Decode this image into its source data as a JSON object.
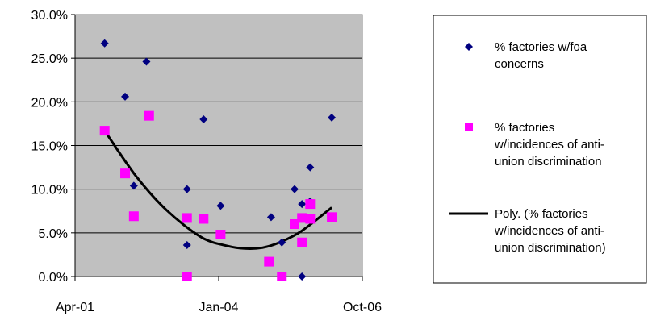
{
  "chart_data": {
    "type": "scatter",
    "title": "",
    "xlabel": "",
    "ylabel": "",
    "x_ticks": [
      "Apr-01",
      "Jan-04",
      "Oct-06"
    ],
    "y_ticks": [
      "0.0%",
      "5.0%",
      "10.0%",
      "15.0%",
      "20.0%",
      "25.0%",
      "30.0%"
    ],
    "xlim": [
      "2001-04-01",
      "2006-10-01"
    ],
    "ylim": [
      0,
      30
    ],
    "y_unit": "%",
    "grid": "horizontal",
    "plot_background": "#c0c0c0",
    "legend_position": "right",
    "series": [
      {
        "name": "% factories w/foa concerns",
        "marker": "diamond",
        "color": "#000080",
        "points": [
          {
            "x": "2001-10-25",
            "y": 26.7
          },
          {
            "x": "2002-03-17",
            "y": 20.6
          },
          {
            "x": "2002-05-17",
            "y": 10.4
          },
          {
            "x": "2002-08-13",
            "y": 24.6
          },
          {
            "x": "2003-05-24",
            "y": 10.0
          },
          {
            "x": "2003-05-24",
            "y": 3.6
          },
          {
            "x": "2003-09-17",
            "y": 18.0
          },
          {
            "x": "2004-01-14",
            "y": 8.1
          },
          {
            "x": "2005-01-01",
            "y": 6.8
          },
          {
            "x": "2005-03-17",
            "y": 3.9
          },
          {
            "x": "2005-06-14",
            "y": 10.0
          },
          {
            "x": "2005-08-05",
            "y": 8.3
          },
          {
            "x": "2005-08-05",
            "y": 0.0
          },
          {
            "x": "2005-10-01",
            "y": 12.5
          },
          {
            "x": "2005-10-01",
            "y": 8.6
          },
          {
            "x": "2006-03-01",
            "y": 18.2
          }
        ]
      },
      {
        "name": "% factories w/incidences of anti-union discrimination",
        "marker": "square",
        "color": "#ff00ff",
        "points": [
          {
            "x": "2001-10-25",
            "y": 16.7
          },
          {
            "x": "2002-03-17",
            "y": 11.8
          },
          {
            "x": "2002-05-17",
            "y": 6.9
          },
          {
            "x": "2002-09-01",
            "y": 18.4
          },
          {
            "x": "2003-05-24",
            "y": 6.7
          },
          {
            "x": "2003-05-24",
            "y": 0.0
          },
          {
            "x": "2003-09-17",
            "y": 6.6
          },
          {
            "x": "2004-01-14",
            "y": 4.8
          },
          {
            "x": "2004-12-17",
            "y": 1.7
          },
          {
            "x": "2005-03-17",
            "y": 0.0
          },
          {
            "x": "2005-06-14",
            "y": 6.0
          },
          {
            "x": "2005-08-05",
            "y": 6.7
          },
          {
            "x": "2005-08-05",
            "y": 3.9
          },
          {
            "x": "2005-10-01",
            "y": 8.3
          },
          {
            "x": "2005-10-01",
            "y": 6.6
          },
          {
            "x": "2006-03-01",
            "y": 6.8
          }
        ]
      }
    ],
    "trendline": {
      "name": "Poly. (% factories w/incidences of anti-union discrimination)",
      "type": "polynomial",
      "of_series": "% factories w/incidences of anti-union discrimination",
      "color": "#000000",
      "points": [
        {
          "x": "2001-10-25",
          "y": 16.7
        },
        {
          "x": "2002-06-01",
          "y": 11.5
        },
        {
          "x": "2003-01-01",
          "y": 7.6
        },
        {
          "x": "2003-09-01",
          "y": 4.5
        },
        {
          "x": "2004-03-01",
          "y": 3.5
        },
        {
          "x": "2004-07-01",
          "y": 3.2
        },
        {
          "x": "2004-11-01",
          "y": 3.3
        },
        {
          "x": "2005-03-01",
          "y": 3.9
        },
        {
          "x": "2005-08-01",
          "y": 5.2
        },
        {
          "x": "2006-03-01",
          "y": 7.9
        }
      ]
    },
    "legend": [
      {
        "symbol": "diamond",
        "color": "#000080",
        "lines": [
          "% factories w/foa",
          "concerns"
        ]
      },
      {
        "symbol": "square",
        "color": "#ff00ff",
        "lines": [
          "% factories",
          "w/incidences of anti-",
          "union discrimination"
        ]
      },
      {
        "symbol": "line",
        "color": "#000000",
        "lines": [
          "Poly. (% factories",
          "w/incidences of anti-",
          "union discrimination)"
        ]
      }
    ]
  }
}
